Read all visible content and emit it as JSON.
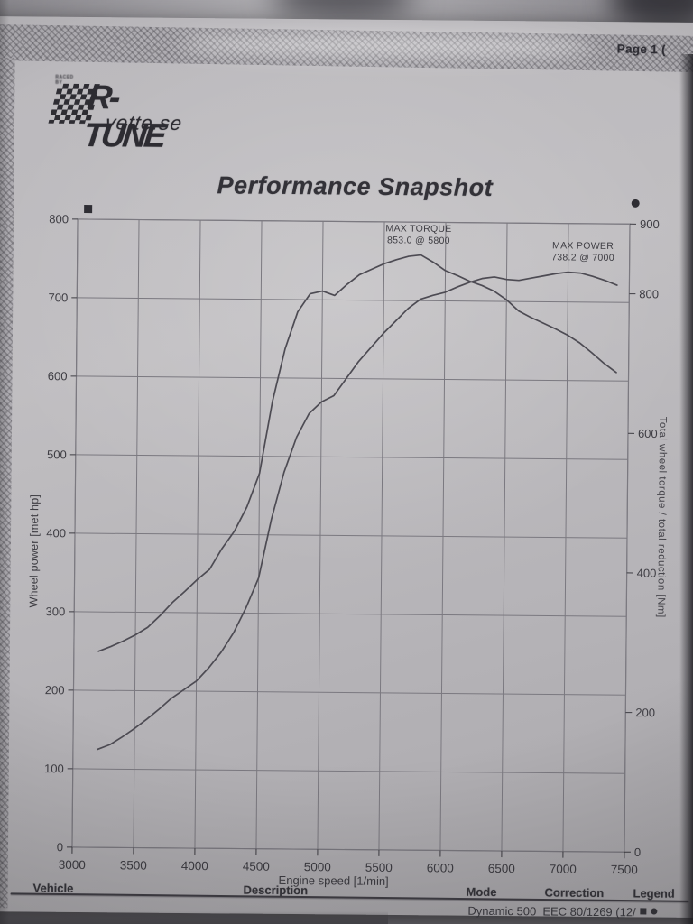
{
  "header": {
    "page_label": "Page 1 ("
  },
  "logo": {
    "raced_by": "RACED BY",
    "title": "R-TUNE",
    "domain": "vette.se"
  },
  "title": "Performance Snapshot",
  "chart_data": {
    "type": "line",
    "title": "Performance Snapshot",
    "xlabel": "Engine speed [1/min]",
    "ylabel_left": "Wheel power [met hp]",
    "ylabel_right": "Total wheel torque / total reduction [Nm]",
    "x_range": [
      3000,
      7500
    ],
    "x_ticks": [
      3000,
      3500,
      4000,
      4500,
      5000,
      5500,
      6000,
      6500,
      7000,
      7500
    ],
    "yleft_range": [
      0,
      800
    ],
    "yleft_ticks": [
      0,
      100,
      200,
      300,
      400,
      500,
      600,
      700,
      800
    ],
    "yright_range": [
      0,
      900
    ],
    "yright_ticks": [
      0,
      200,
      400,
      600,
      800,
      900
    ],
    "grid": true,
    "legend_position": "plot-top-corners",
    "colors": {
      "line": "#4d4b53",
      "grid": "#7b7980",
      "ink": "#3e3d43"
    },
    "x_start": 3200,
    "x_step": 100,
    "series": [
      {
        "name": "Wheel power",
        "axis": "left",
        "marker": "square",
        "values": [
          125,
          131,
          141,
          152,
          164,
          177,
          191,
          202,
          213,
          230,
          250,
          275,
          307,
          345,
          420,
          480,
          525,
          555,
          570,
          578,
          600,
          622,
          640,
          658,
          674,
          690,
          702,
          707,
          711,
          718,
          724,
          729,
          731,
          728,
          727,
          730,
          733,
          736,
          738,
          737,
          733,
          728,
          722
        ]
      },
      {
        "name": "Total wheel torque",
        "axis": "right",
        "marker": "dot",
        "values": [
          281,
          288,
          296,
          305,
          316,
          333,
          352,
          368,
          385,
          400,
          430,
          455,
          490,
          538,
          641,
          717,
          770,
          796,
          800,
          794,
          810,
          824,
          832,
          840,
          846,
          851,
          853,
          843,
          831,
          824,
          816,
          810,
          802,
          790,
          774,
          765,
          757,
          749,
          740,
          729,
          715,
          700,
          687
        ]
      }
    ],
    "annotations": [
      {
        "lines": [
          "MAX TORQUE",
          "853.0 @ 5800"
        ],
        "at_rpm": 5780,
        "at_left": 788
      },
      {
        "lines": [
          "MAX POWER",
          "738.2 @ 7000"
        ],
        "at_rpm": 7120,
        "at_left": 768
      }
    ],
    "max_torque": {
      "value": 853.0,
      "rpm": 5800
    },
    "max_power": {
      "value": 738.2,
      "rpm": 7000
    }
  },
  "footer": {
    "headers": {
      "vehicle": "Vehicle",
      "description": "Description",
      "mode": "Mode",
      "correction": "Correction",
      "legend": "Legend"
    },
    "mode_value": "Dynamic 500",
    "correction_value": "EEC 80/1269 (12/",
    "legend_icons": [
      "square-icon",
      "dot-icon"
    ]
  }
}
